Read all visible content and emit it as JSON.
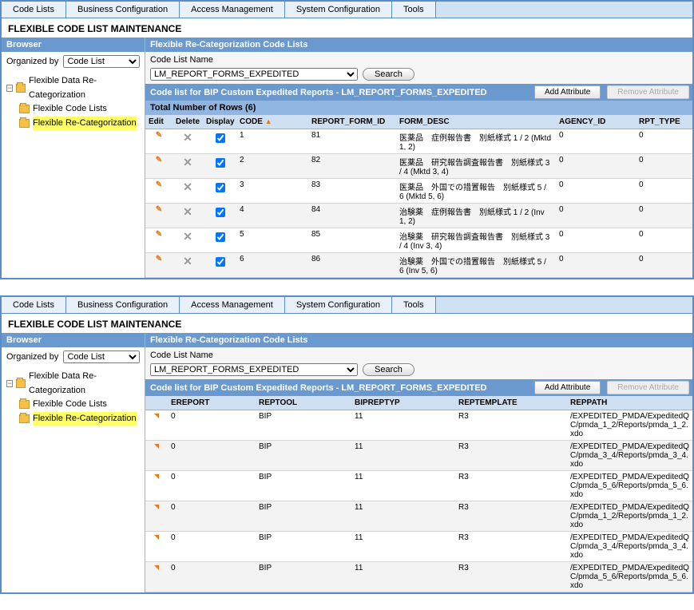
{
  "colors": {
    "accent": "#6a99cf",
    "highlight": "#ffff66"
  },
  "tabs": [
    "Code Lists",
    "Business Configuration",
    "Access Management",
    "System Configuration",
    "Tools"
  ],
  "page_title": "FLEXIBLE CODE LIST MAINTENANCE",
  "browser": {
    "title": "Browser",
    "organized_by_label": "Organized by",
    "organized_by_value": "Code List",
    "tree": {
      "root": "Flexible Data Re-Categorization",
      "child1": "Flexible Code Lists",
      "child2": "Flexible Re-Categorization"
    }
  },
  "top": {
    "flex_title": "Flexible Re-Categorization Code Lists",
    "code_list_name_label": "Code List Name",
    "code_list_name_value": "LM_REPORT_FORMS_EXPEDITED",
    "search_label": "Search",
    "sub_label": "Code list for BIP Custom Expedited Reports - LM_REPORT_FORMS_EXPEDITED",
    "add_attr": "Add Attribute",
    "remove_attr": "Remove Attribute",
    "rowcount": "Total Number of Rows (6)",
    "columns": {
      "edit": "Edit",
      "del": "Delete",
      "disp": "Display",
      "code": "CODE",
      "rfi": "REPORT_FORM_ID",
      "form_desc": "FORM_DESC",
      "agency": "AGENCY_ID",
      "rpt": "RPT_TYPE"
    },
    "rows": [
      {
        "code": "1",
        "rfi": "81",
        "desc": "医薬品　症例報告書　別紙様式 1 / 2  (Mktd 1, 2)",
        "agency": "0",
        "rpt": "0"
      },
      {
        "code": "2",
        "rfi": "82",
        "desc": "医薬品　研究報告調査報告書　別紙様式 3 / 4  (Mktd 3, 4)",
        "agency": "0",
        "rpt": "0"
      },
      {
        "code": "3",
        "rfi": "83",
        "desc": "医薬品　外国での措置報告　別紙様式 5 / 6  (Mktd 5, 6)",
        "agency": "0",
        "rpt": "0"
      },
      {
        "code": "4",
        "rfi": "84",
        "desc": "治験薬　症例報告書　別紙様式 1 / 2  (Inv 1, 2)",
        "agency": "0",
        "rpt": "0"
      },
      {
        "code": "5",
        "rfi": "85",
        "desc": "治験薬　研究報告調査報告書　別紙様式 3 / 4  (Inv 3, 4)",
        "agency": "0",
        "rpt": "0"
      },
      {
        "code": "6",
        "rfi": "86",
        "desc": "治験薬　外国での措置報告　別紙様式 5 / 6  (Inv 5, 6)",
        "agency": "0",
        "rpt": "0"
      }
    ]
  },
  "bottom": {
    "columns": {
      "ereport": "EREPORT",
      "reptool": "REPTOOL",
      "bipreptyp": "BIPREPTYP",
      "reptemplate": "REPTEMPLATE",
      "reppath": "REPPATH"
    },
    "rows": [
      {
        "ereport": "0",
        "reptool": "BIP",
        "bipreptyp": "11",
        "reptemplate": "R3",
        "reppath": "/EXPEDITED_PMDA/ExpeditedQC/pmda_1_2/Reports/pmda_1_2.xdo"
      },
      {
        "ereport": "0",
        "reptool": "BIP",
        "bipreptyp": "11",
        "reptemplate": "R3",
        "reppath": "/EXPEDITED_PMDA/ExpeditedQC/pmda_3_4/Reports/pmda_3_4.xdo"
      },
      {
        "ereport": "0",
        "reptool": "BIP",
        "bipreptyp": "11",
        "reptemplate": "R3",
        "reppath": "/EXPEDITED_PMDA/ExpeditedQC/pmda_5_6/Reports/pmda_5_6.xdo"
      },
      {
        "ereport": "0",
        "reptool": "BIP",
        "bipreptyp": "11",
        "reptemplate": "R3",
        "reppath": "/EXPEDITED_PMDA/ExpeditedQC/pmda_1_2/Reports/pmda_1_2.xdo"
      },
      {
        "ereport": "0",
        "reptool": "BIP",
        "bipreptyp": "11",
        "reptemplate": "R3",
        "reppath": "/EXPEDITED_PMDA/ExpeditedQC/pmda_3_4/Reports/pmda_3_4.xdo"
      },
      {
        "ereport": "0",
        "reptool": "BIP",
        "bipreptyp": "11",
        "reptemplate": "R3",
        "reppath": "/EXPEDITED_PMDA/ExpeditedQC/pmda_5_6/Reports/pmda_5_6.xdo"
      }
    ]
  }
}
